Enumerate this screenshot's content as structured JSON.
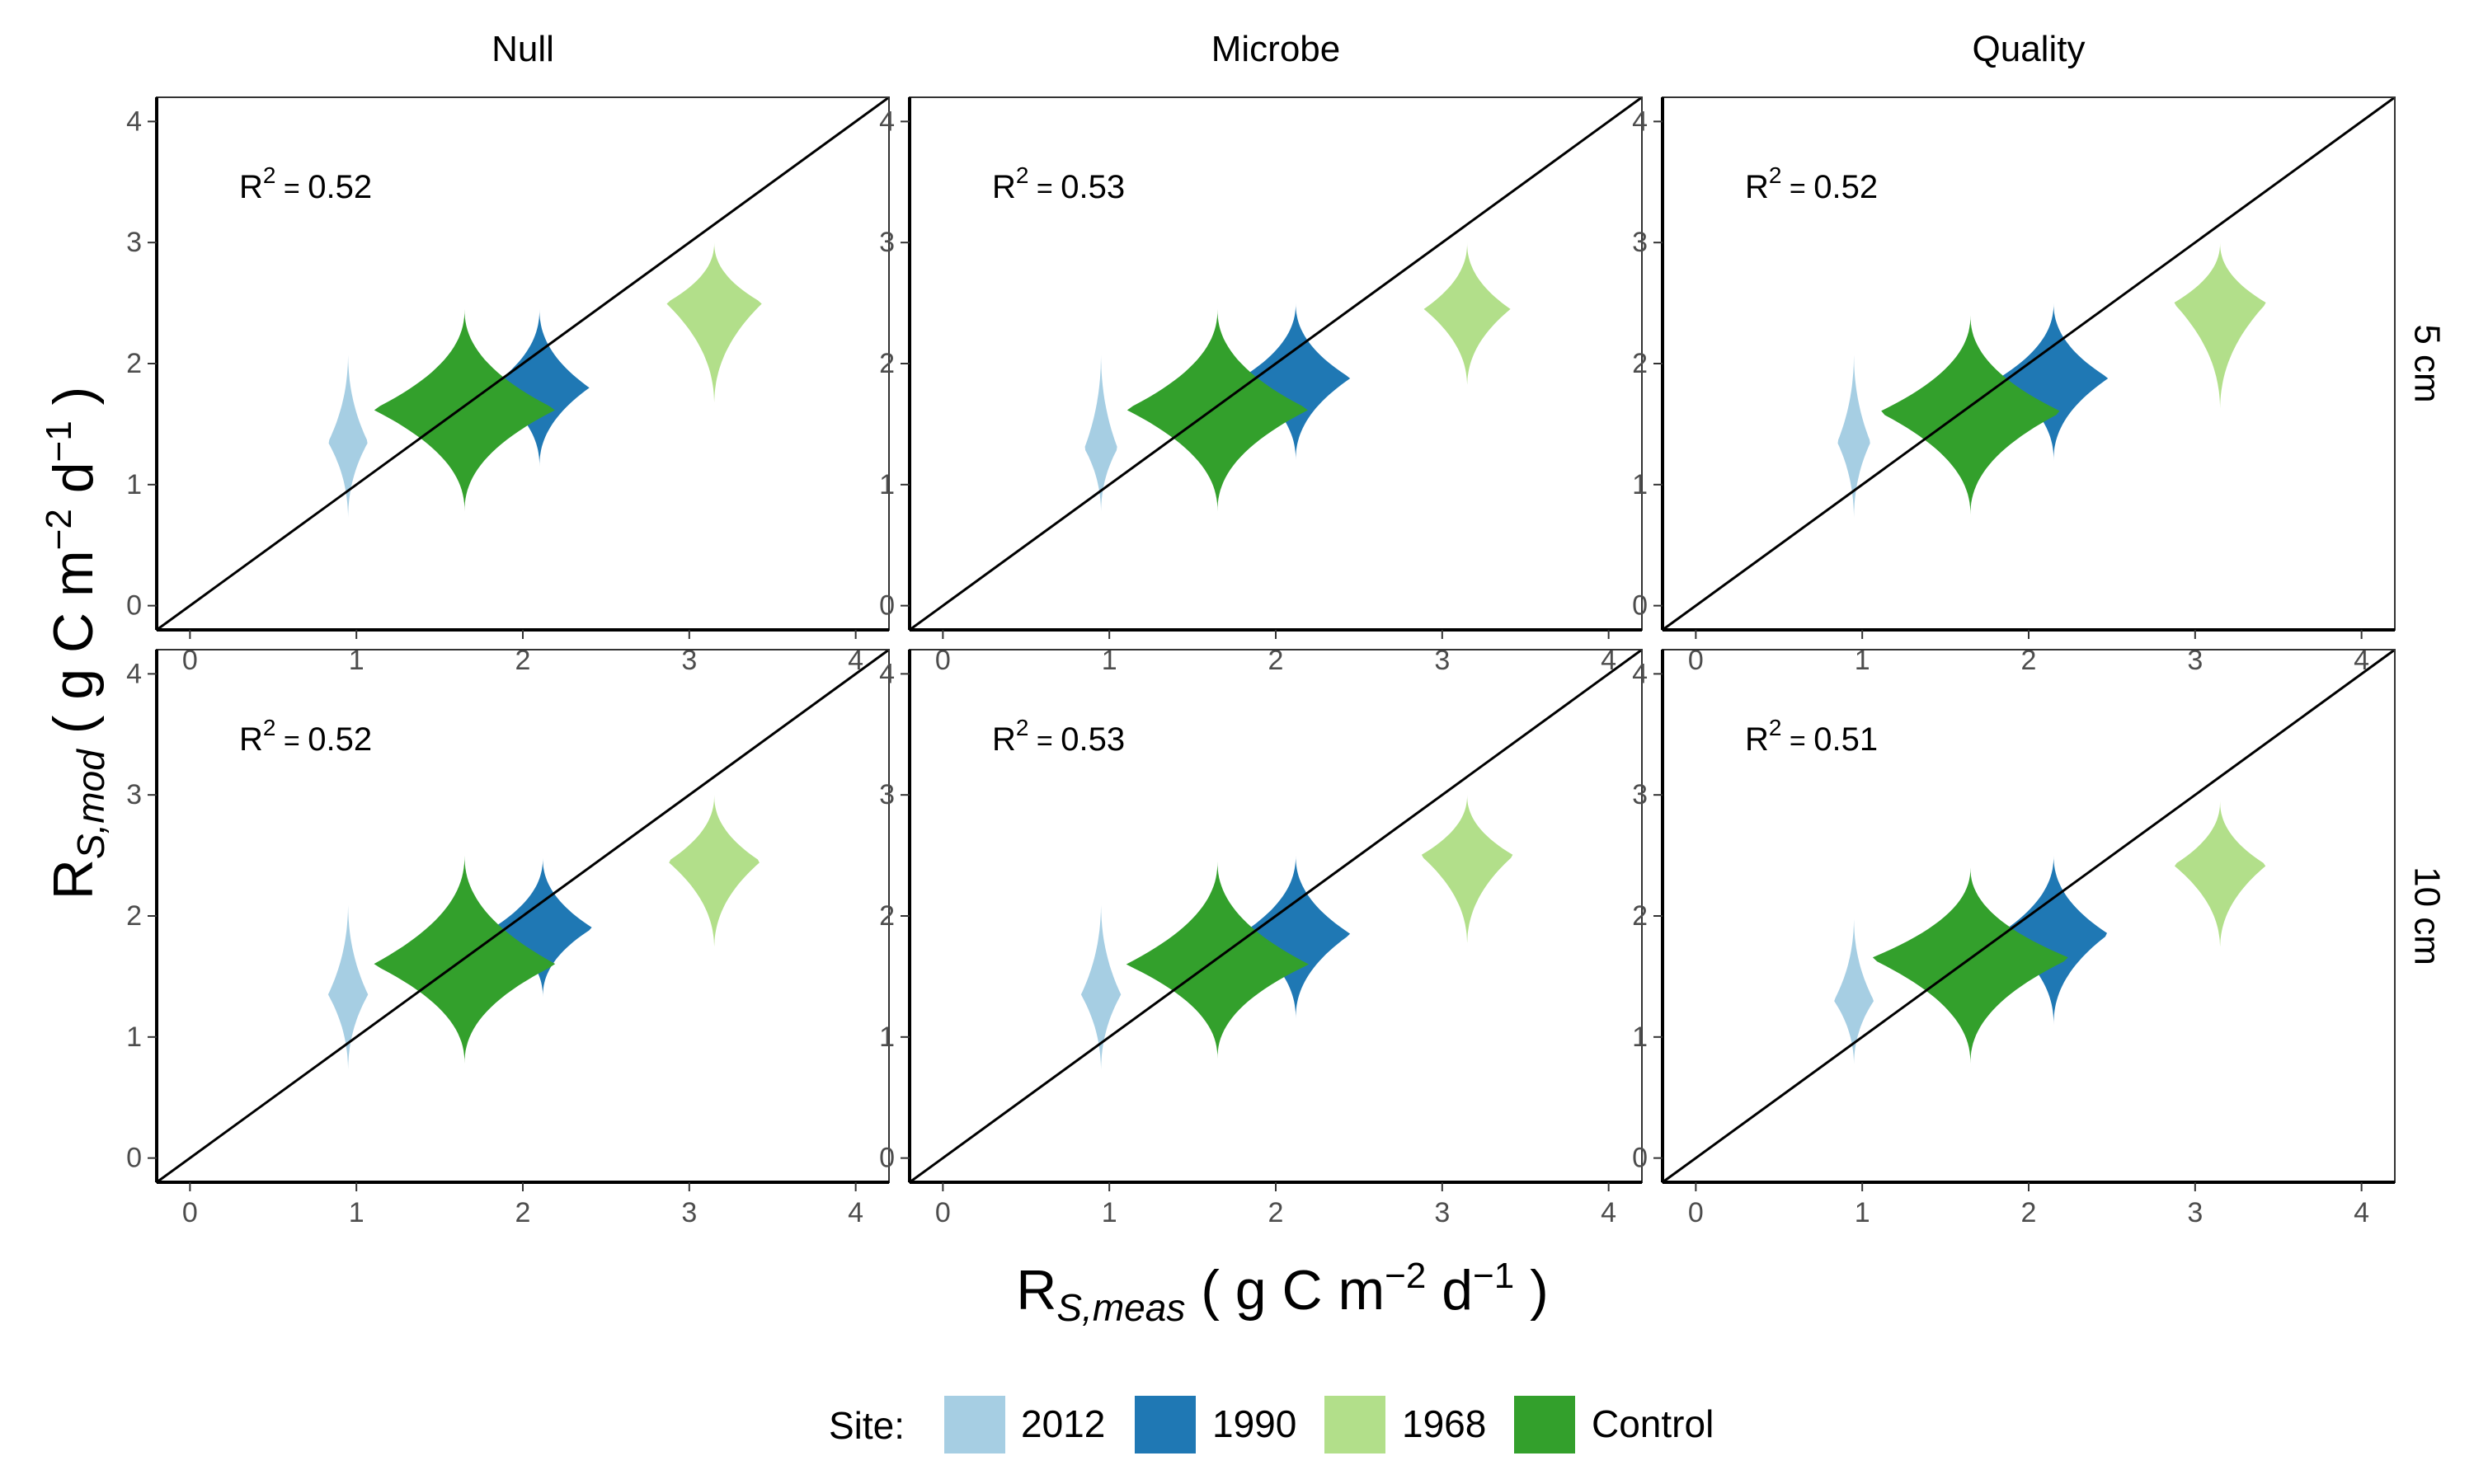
{
  "colors": {
    "site_2012": "#a6cee3",
    "site_1990": "#1f78b4",
    "site_1968": "#b2df8a",
    "site_Control": "#33a02c",
    "identity_line": "#000000"
  },
  "legend": {
    "title": "Site:",
    "entries": [
      "2012",
      "1990",
      "1968",
      "Control"
    ]
  },
  "axes": {
    "x_title": {
      "main": "R",
      "sub": "S,meas",
      "open": " ( g C m",
      "exp1": "−2",
      "mid": " d",
      "exp2": "−1",
      "close": " )"
    },
    "y_title": {
      "main": "R",
      "sub": "S,mod",
      "open": " ( g C m",
      "exp1": "−2",
      "mid": " d",
      "exp2": "−1",
      "close": " )"
    },
    "x_ticks": [
      "0",
      "1",
      "2",
      "3",
      "4"
    ],
    "y_ticks": [
      "0",
      "1",
      "2",
      "3",
      "4"
    ]
  },
  "panel_labels": {
    "columns": [
      "Null",
      "Microbe",
      "Quality"
    ],
    "rows": [
      "5 cm",
      "10 cm"
    ]
  },
  "chart_data": {
    "type": "violin",
    "facet_columns": [
      "Null",
      "Microbe",
      "Quality"
    ],
    "facet_rows": [
      "5 cm",
      "10 cm"
    ],
    "x_range": [
      -0.2,
      4.2
    ],
    "y_range": [
      -0.2,
      4.2
    ],
    "x_ticks": [
      0,
      1,
      2,
      3,
      4
    ],
    "y_ticks": [
      0,
      1,
      2,
      3,
      4
    ],
    "identity_line": true,
    "grid": false,
    "legend_position": "bottom",
    "panels": [
      {
        "column": "Null",
        "row": "5 cm",
        "r2_label": "0.52",
        "violins": [
          {
            "site": "2012",
            "x": 0.95,
            "y_min": 0.7,
            "y_max": 2.1,
            "y_mode": 1.35,
            "max_half_width": 0.12
          },
          {
            "site": "1990",
            "x": 2.1,
            "y_min": 1.15,
            "y_max": 2.45,
            "y_mode": 1.8,
            "max_half_width": 0.3
          },
          {
            "site": "1968",
            "x": 3.15,
            "y_min": 1.65,
            "y_max": 3.0,
            "y_mode": 2.5,
            "max_half_width": 0.29
          },
          {
            "site": "Control",
            "x": 1.65,
            "y_min": 0.78,
            "y_max": 2.45,
            "y_mode": 1.62,
            "max_half_width": 0.55
          }
        ]
      },
      {
        "column": "Microbe",
        "row": "5 cm",
        "r2_label": "0.53",
        "violins": [
          {
            "site": "2012",
            "x": 0.95,
            "y_min": 0.75,
            "y_max": 2.1,
            "y_mode": 1.3,
            "max_half_width": 0.1
          },
          {
            "site": "1990",
            "x": 2.12,
            "y_min": 1.2,
            "y_max": 2.5,
            "y_mode": 1.88,
            "max_half_width": 0.33
          },
          {
            "site": "1968",
            "x": 3.15,
            "y_min": 1.8,
            "y_max": 3.0,
            "y_mode": 2.45,
            "max_half_width": 0.26
          },
          {
            "site": "Control",
            "x": 1.65,
            "y_min": 0.78,
            "y_max": 2.45,
            "y_mode": 1.62,
            "max_half_width": 0.55
          }
        ]
      },
      {
        "column": "Quality",
        "row": "5 cm",
        "r2_label": "0.52",
        "violins": [
          {
            "site": "2012",
            "x": 0.95,
            "y_min": 0.7,
            "y_max": 2.1,
            "y_mode": 1.35,
            "max_half_width": 0.1
          },
          {
            "site": "1990",
            "x": 2.15,
            "y_min": 1.2,
            "y_max": 2.5,
            "y_mode": 1.88,
            "max_half_width": 0.33
          },
          {
            "site": "1968",
            "x": 3.15,
            "y_min": 1.6,
            "y_max": 3.0,
            "y_mode": 2.5,
            "max_half_width": 0.28
          },
          {
            "site": "Control",
            "x": 1.65,
            "y_min": 0.75,
            "y_max": 2.4,
            "y_mode": 1.6,
            "max_half_width": 0.55
          }
        ]
      },
      {
        "column": "Null",
        "row": "10 cm",
        "r2_label": "0.52",
        "violins": [
          {
            "site": "2012",
            "x": 0.95,
            "y_min": 0.7,
            "y_max": 2.12,
            "y_mode": 1.35,
            "max_half_width": 0.12
          },
          {
            "site": "1990",
            "x": 2.12,
            "y_min": 1.33,
            "y_max": 2.48,
            "y_mode": 1.9,
            "max_half_width": 0.3
          },
          {
            "site": "1968",
            "x": 3.15,
            "y_min": 1.72,
            "y_max": 3.0,
            "y_mode": 2.45,
            "max_half_width": 0.28
          },
          {
            "site": "Control",
            "x": 1.65,
            "y_min": 0.78,
            "y_max": 2.5,
            "y_mode": 1.6,
            "max_half_width": 0.55
          }
        ]
      },
      {
        "column": "Microbe",
        "row": "10 cm",
        "r2_label": "0.53",
        "violins": [
          {
            "site": "2012",
            "x": 0.95,
            "y_min": 0.7,
            "y_max": 2.12,
            "y_mode": 1.35,
            "max_half_width": 0.12
          },
          {
            "site": "1990",
            "x": 2.12,
            "y_min": 1.15,
            "y_max": 2.5,
            "y_mode": 1.85,
            "max_half_width": 0.33
          },
          {
            "site": "1968",
            "x": 3.15,
            "y_min": 1.75,
            "y_max": 3.0,
            "y_mode": 2.5,
            "max_half_width": 0.28
          },
          {
            "site": "Control",
            "x": 1.65,
            "y_min": 0.82,
            "y_max": 2.45,
            "y_mode": 1.6,
            "max_half_width": 0.55
          }
        ]
      },
      {
        "column": "Quality",
        "row": "10 cm",
        "r2_label": "0.51",
        "violins": [
          {
            "site": "2012",
            "x": 0.95,
            "y_min": 0.75,
            "y_max": 2.0,
            "y_mode": 1.3,
            "max_half_width": 0.12
          },
          {
            "site": "1990",
            "x": 2.15,
            "y_min": 1.1,
            "y_max": 2.5,
            "y_mode": 1.85,
            "max_half_width": 0.33
          },
          {
            "site": "1968",
            "x": 3.15,
            "y_min": 1.72,
            "y_max": 2.95,
            "y_mode": 2.42,
            "max_half_width": 0.28
          },
          {
            "site": "Control",
            "x": 1.65,
            "y_min": 0.78,
            "y_max": 2.4,
            "y_mode": 1.65,
            "max_half_width": 0.6
          }
        ]
      }
    ]
  }
}
